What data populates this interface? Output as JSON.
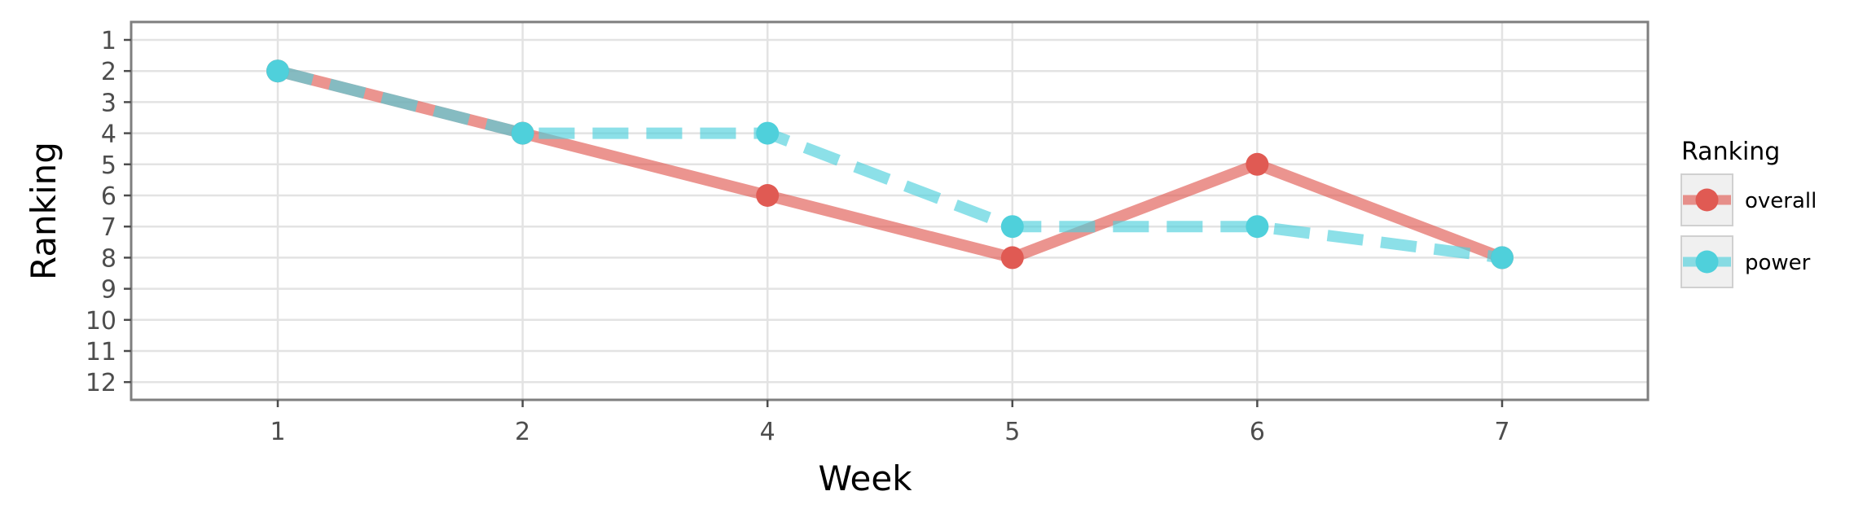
{
  "chart_data": {
    "type": "line",
    "title": "",
    "xlabel": "Week",
    "ylabel": "Ranking",
    "categories": [
      "1",
      "2",
      "4",
      "5",
      "6",
      "7"
    ],
    "y_ticks": [
      "1",
      "2",
      "3",
      "4",
      "5",
      "6",
      "7",
      "8",
      "9",
      "10",
      "11",
      "12"
    ],
    "ylim": [
      1,
      12
    ],
    "y_reversed": true,
    "grid": true,
    "legend": {
      "title": "Ranking",
      "position": "right"
    },
    "series": [
      {
        "name": "overall",
        "color": "#e05a53",
        "line_style": "solid",
        "values": [
          2,
          4,
          6,
          8,
          5,
          8
        ]
      },
      {
        "name": "power",
        "color": "#4fd0db",
        "line_style": "dashed",
        "values": [
          2,
          4,
          4,
          7,
          7,
          8
        ]
      }
    ]
  }
}
